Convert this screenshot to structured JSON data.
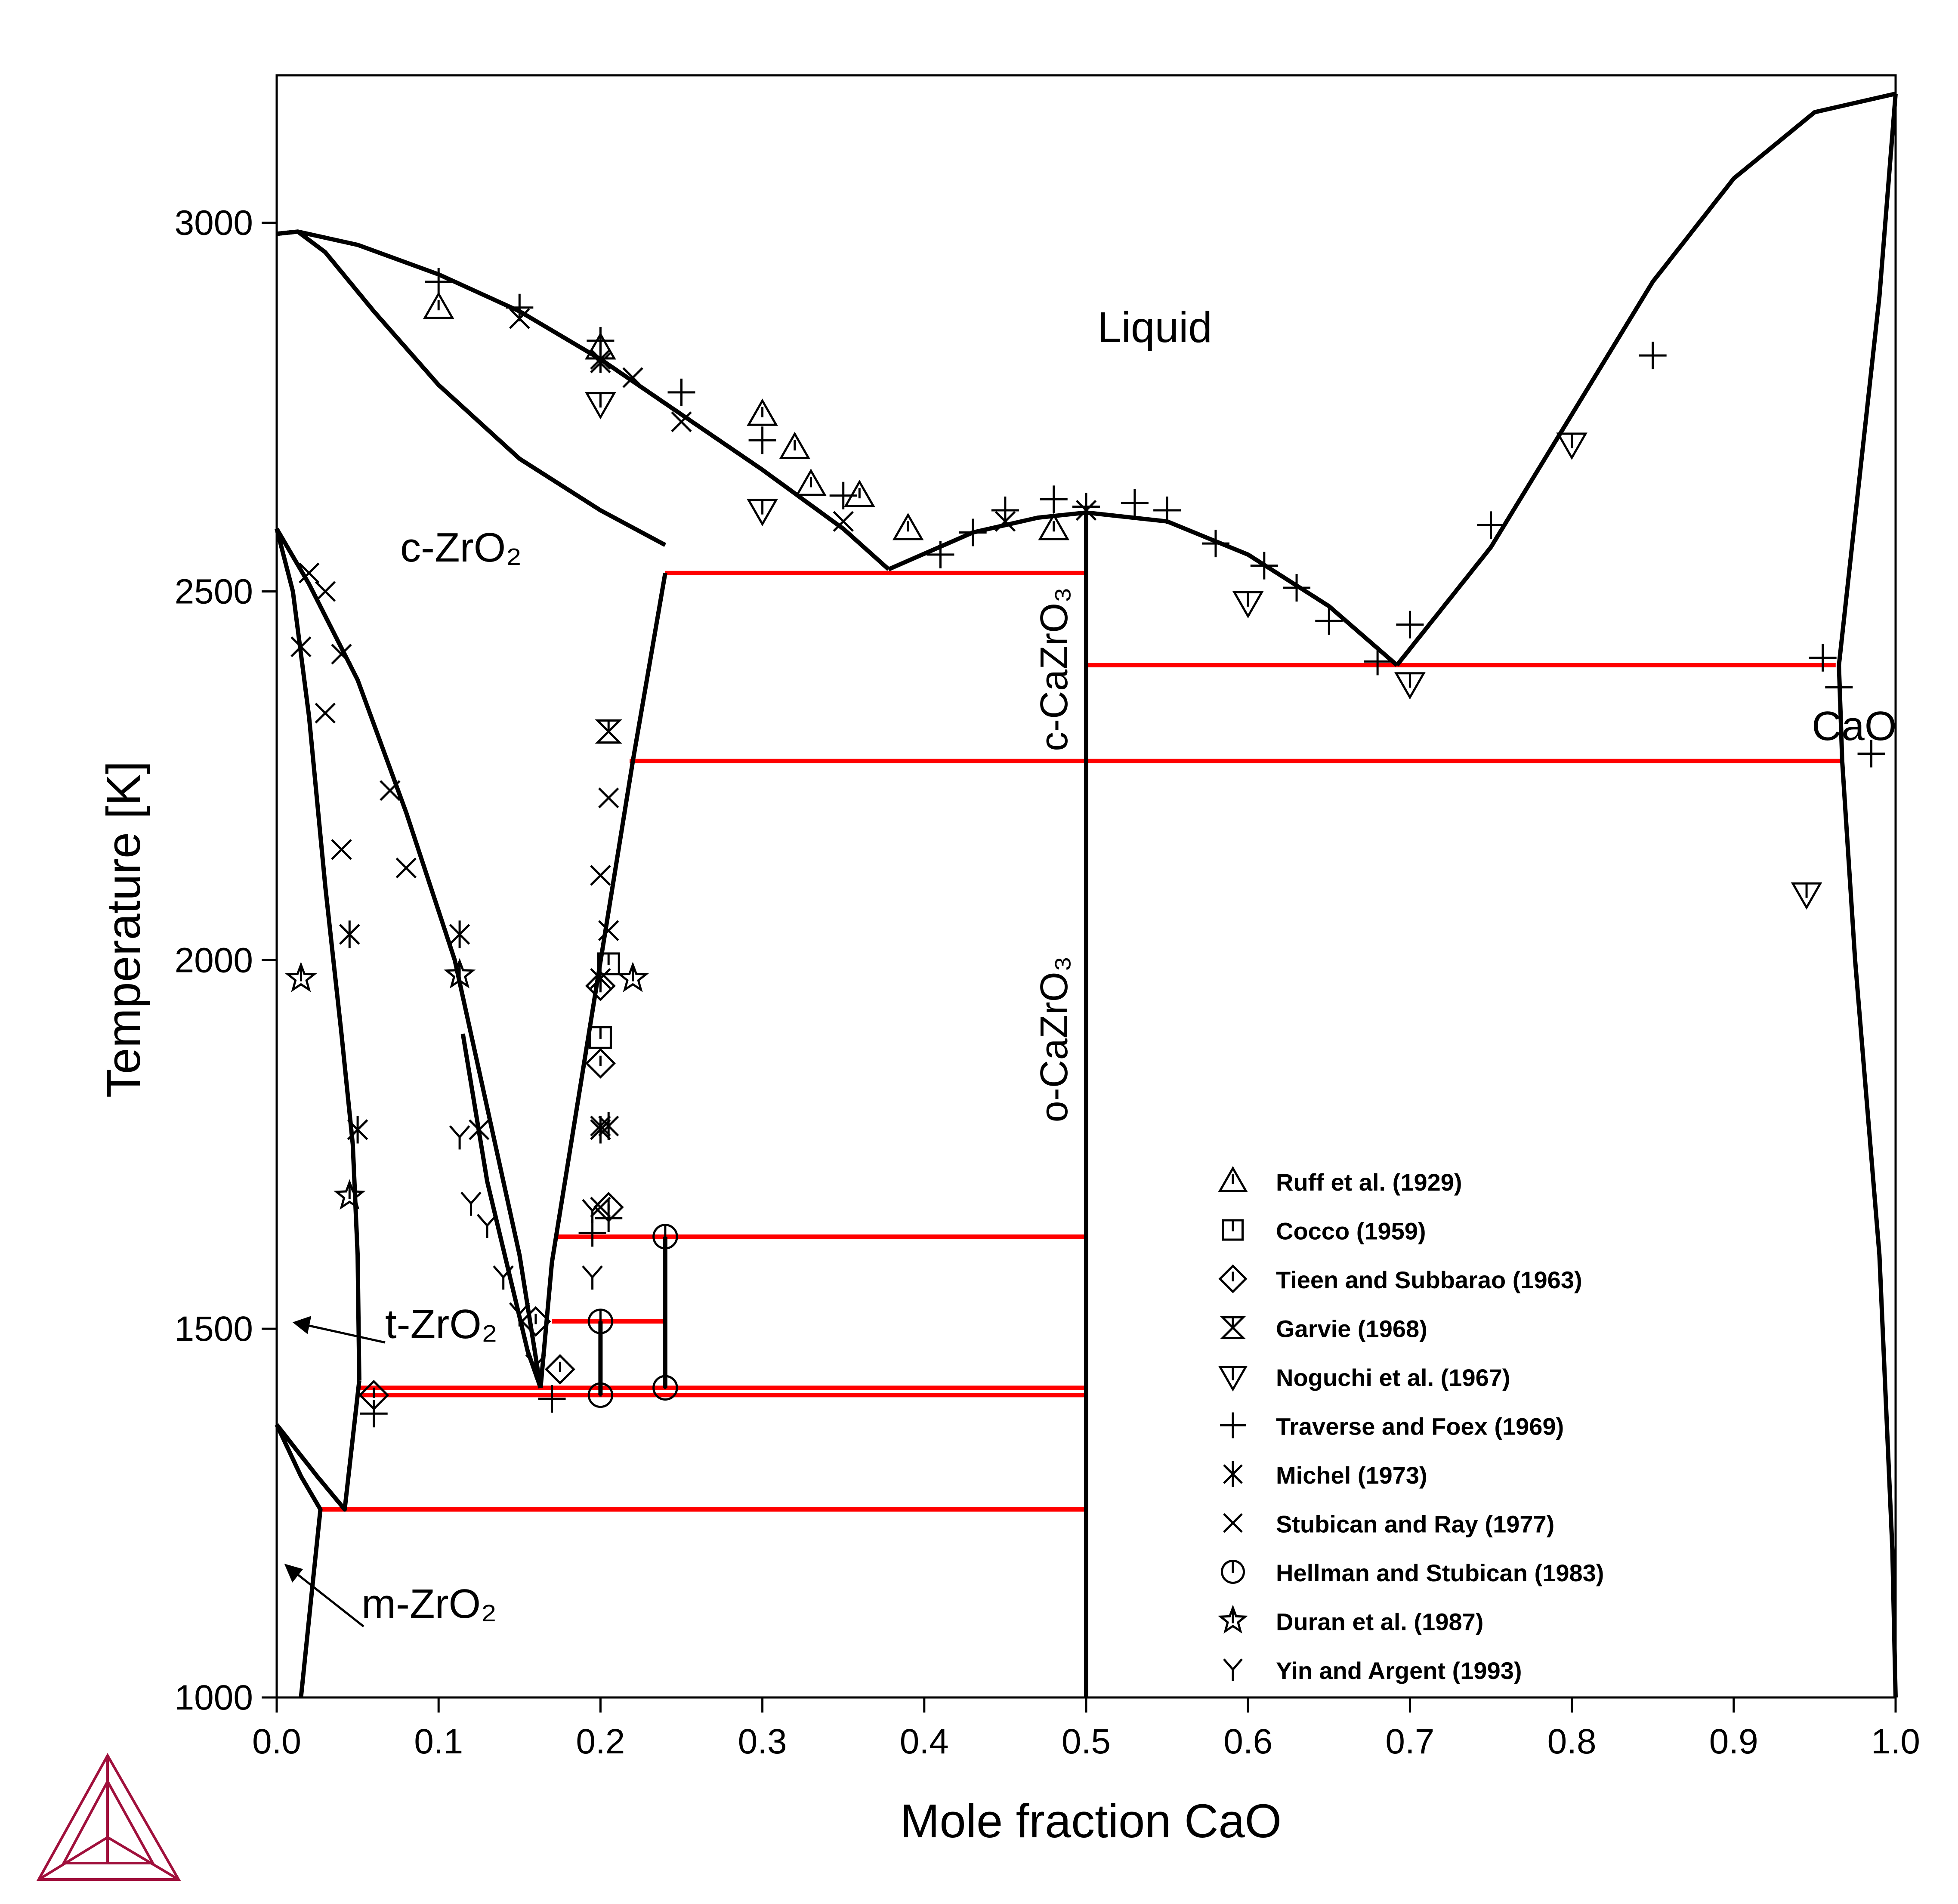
{
  "chart_data": {
    "type": "scatter",
    "subtype": "phase-diagram",
    "xlabel": "Mole fraction CaO",
    "ylabel": "Temperature [K]",
    "xlim": [
      0,
      1
    ],
    "ylim": [
      1000,
      3200
    ],
    "xticks": [
      "0.0",
      "0.1",
      "0.2",
      "0.3",
      "0.4",
      "0.5",
      "0.6",
      "0.7",
      "0.8",
      "0.9",
      "1.0"
    ],
    "yticks": [
      "1000",
      "1500",
      "2000",
      "2500",
      "3000"
    ],
    "grid": false,
    "legend_position": "lower-right",
    "colors": {
      "phase_boundary": "#000000",
      "invariant": "#ff0000",
      "logo": "#a0103c"
    },
    "labels": {
      "liquid": "Liquid",
      "c_zro2": "c-ZrO₂",
      "t_zro2": "t-ZrO₂",
      "m_zro2": "m-ZrO₂",
      "c_cazro3": "c-CaZrO₃",
      "o_cazro3": "o-CaZrO₃",
      "cao": "CaO"
    },
    "phase_boundaries": [
      {
        "name": "liquidus-zro2",
        "points": [
          [
            0,
            2985
          ],
          [
            0.013,
            2988
          ],
          [
            0.05,
            2970
          ],
          [
            0.1,
            2930
          ],
          [
            0.15,
            2880
          ],
          [
            0.2,
            2815
          ],
          [
            0.25,
            2740
          ],
          [
            0.3,
            2665
          ],
          [
            0.35,
            2585
          ],
          [
            0.378,
            2530
          ]
        ]
      },
      {
        "name": "solidus-c-zro2",
        "points": [
          [
            0,
            2985
          ],
          [
            0.013,
            2988
          ],
          [
            0.03,
            2960
          ],
          [
            0.06,
            2880
          ],
          [
            0.1,
            2780
          ],
          [
            0.15,
            2680
          ],
          [
            0.2,
            2610
          ],
          [
            0.24,
            2563
          ],
          [
            0.24,
            2563
          ]
        ]
      },
      {
        "name": "c-zro2-solvus-high",
        "points": [
          [
            0.24,
            2525
          ],
          [
            0.22,
            2270
          ],
          [
            0.17,
            1590
          ],
          [
            0.163,
            1420
          ]
        ]
      },
      {
        "name": "liquidus-cazro3-left",
        "points": [
          [
            0.378,
            2530
          ],
          [
            0.43,
            2580
          ],
          [
            0.47,
            2600
          ],
          [
            0.5,
            2607
          ]
        ]
      },
      {
        "name": "liquidus-cazro3-right",
        "points": [
          [
            0.5,
            2607
          ],
          [
            0.55,
            2595
          ],
          [
            0.6,
            2550
          ],
          [
            0.65,
            2480
          ],
          [
            0.692,
            2400
          ]
        ]
      },
      {
        "name": "liquidus-cao",
        "points": [
          [
            0.692,
            2400
          ],
          [
            0.75,
            2560
          ],
          [
            0.8,
            2740
          ],
          [
            0.85,
            2920
          ],
          [
            0.9,
            3060
          ],
          [
            0.95,
            3150
          ],
          [
            1.0,
            3175
          ]
        ]
      },
      {
        "name": "cao-solidus",
        "points": [
          [
            1.0,
            3175
          ],
          [
            0.99,
            2900
          ],
          [
            0.975,
            2600
          ],
          [
            0.965,
            2400
          ],
          [
            0.967,
            2270
          ],
          [
            0.975,
            2000
          ],
          [
            0.99,
            1600
          ],
          [
            0.998,
            1200
          ],
          [
            1.0,
            1000
          ]
        ]
      },
      {
        "name": "cazro3-line",
        "points": [
          [
            0.5,
            2607
          ],
          [
            0.5,
            1000
          ]
        ]
      },
      {
        "name": "t-zro2-left",
        "points": [
          [
            0,
            2585
          ],
          [
            0.01,
            2500
          ],
          [
            0.02,
            2330
          ],
          [
            0.03,
            2100
          ],
          [
            0.04,
            1900
          ],
          [
            0.047,
            1750
          ],
          [
            0.05,
            1600
          ],
          [
            0.051,
            1430
          ]
        ]
      },
      {
        "name": "t-zro2-right",
        "points": [
          [
            0,
            2585
          ],
          [
            0.02,
            2510
          ],
          [
            0.05,
            2380
          ],
          [
            0.08,
            2200
          ],
          [
            0.11,
            2000
          ],
          [
            0.13,
            1800
          ],
          [
            0.15,
            1600
          ],
          [
            0.163,
            1420
          ]
        ]
      },
      {
        "name": "c-zro2-low",
        "points": [
          [
            0.163,
            1420
          ],
          [
            0.155,
            1470
          ],
          [
            0.13,
            1700
          ],
          [
            0.115,
            1900
          ]
        ]
      },
      {
        "name": "t-m-upper",
        "points": [
          [
            0,
            1370
          ],
          [
            0.025,
            1300
          ],
          [
            0.042,
            1255
          ],
          [
            0.051,
            1430
          ]
        ]
      },
      {
        "name": "m-zro2",
        "points": [
          [
            0,
            1370
          ],
          [
            0.015,
            1300
          ],
          [
            0.027,
            1255
          ],
          [
            0.022,
            1150
          ],
          [
            0.015,
            1000
          ]
        ]
      }
    ],
    "invariant_lines": [
      {
        "y": 2525,
        "x": [
          0.24,
          0.5
        ]
      },
      {
        "y": 2400,
        "x": [
          0.5,
          0.963
        ]
      },
      {
        "y": 2270,
        "x": [
          0.218,
          0.967
        ]
      },
      {
        "y": 1625,
        "x": [
          0.172,
          0.5
        ]
      },
      {
        "y": 1510,
        "x": [
          0.17,
          0.24
        ]
      },
      {
        "y": 1420,
        "x": [
          0.05,
          0.5
        ]
      },
      {
        "y": 1410,
        "x": [
          0.05,
          0.5
        ]
      },
      {
        "y": 1255,
        "x": [
          0.027,
          0.5
        ]
      }
    ],
    "tie_lines": [
      {
        "x": 0.2,
        "y": [
          1410,
          1510
        ]
      },
      {
        "x": 0.24,
        "y": [
          1420,
          1625
        ]
      }
    ],
    "series": [
      {
        "name": "Ruff et al. (1929)",
        "marker": "triangle-up",
        "points": [
          [
            0.1,
            2885
          ],
          [
            0.2,
            2830
          ],
          [
            0.3,
            2740
          ],
          [
            0.32,
            2695
          ],
          [
            0.33,
            2645
          ],
          [
            0.36,
            2630
          ],
          [
            0.39,
            2585
          ],
          [
            0.48,
            2585
          ]
        ]
      },
      {
        "name": "Cocco (1959)",
        "marker": "square",
        "points": [
          [
            0.205,
            1995
          ],
          [
            0.2,
            1895
          ]
        ]
      },
      {
        "name": "Tieen and Subbarao (1963)",
        "marker": "diamond",
        "points": [
          [
            0.2,
            1965
          ],
          [
            0.2,
            1860
          ],
          [
            0.205,
            1665
          ],
          [
            0.06,
            1410
          ],
          [
            0.175,
            1445
          ],
          [
            0.16,
            1510
          ]
        ]
      },
      {
        "name": "Garvie (1968)",
        "marker": "hourglass",
        "points": [
          [
            0.205,
            2310
          ]
        ]
      },
      {
        "name": "Noguchi et al. (1967)",
        "marker": "triangle-down",
        "points": [
          [
            0.2,
            2755
          ],
          [
            0.3,
            2610
          ],
          [
            0.6,
            2485
          ],
          [
            0.7,
            2375
          ],
          [
            0.8,
            2700
          ],
          [
            0.945,
            2090
          ]
        ]
      },
      {
        "name": "Traverse and Foex (1969)",
        "marker": "plus",
        "points": [
          [
            0.1,
            2920
          ],
          [
            0.15,
            2885
          ],
          [
            0.2,
            2840
          ],
          [
            0.25,
            2770
          ],
          [
            0.3,
            2705
          ],
          [
            0.35,
            2630
          ],
          [
            0.41,
            2550
          ],
          [
            0.43,
            2580
          ],
          [
            0.45,
            2610
          ],
          [
            0.48,
            2625
          ],
          [
            0.5,
            2615
          ],
          [
            0.53,
            2620
          ],
          [
            0.55,
            2610
          ],
          [
            0.58,
            2565
          ],
          [
            0.61,
            2535
          ],
          [
            0.63,
            2505
          ],
          [
            0.65,
            2460
          ],
          [
            0.68,
            2405
          ],
          [
            0.7,
            2455
          ],
          [
            0.75,
            2590
          ],
          [
            0.85,
            2820
          ],
          [
            0.955,
            2410
          ],
          [
            0.965,
            2370
          ],
          [
            0.985,
            2280
          ],
          [
            0.06,
            1385
          ],
          [
            0.17,
            1405
          ],
          [
            0.195,
            1630
          ],
          [
            0.205,
            1650
          ]
        ]
      },
      {
        "name": "Michel (1973)",
        "marker": "asterisk",
        "points": [
          [
            0.2,
            2815
          ],
          [
            0.2,
            1975
          ],
          [
            0.2,
            1770
          ],
          [
            0.205,
            1775
          ],
          [
            0.113,
            2035
          ],
          [
            0.045,
            2035
          ],
          [
            0.05,
            1770
          ]
        ]
      },
      {
        "name": "Stubican and Ray (1977)",
        "marker": "cross",
        "points": [
          [
            0.15,
            2870
          ],
          [
            0.2,
            2810
          ],
          [
            0.22,
            2790
          ],
          [
            0.25,
            2730
          ],
          [
            0.35,
            2595
          ],
          [
            0.45,
            2595
          ],
          [
            0.5,
            2610
          ],
          [
            0.02,
            2525
          ],
          [
            0.03,
            2500
          ],
          [
            0.015,
            2425
          ],
          [
            0.04,
            2415
          ],
          [
            0.03,
            2335
          ],
          [
            0.04,
            2150
          ],
          [
            0.07,
            2230
          ],
          [
            0.08,
            2125
          ],
          [
            0.045,
            2035
          ],
          [
            0.05,
            1770
          ],
          [
            0.125,
            1770
          ],
          [
            0.205,
            2220
          ],
          [
            0.2,
            2115
          ],
          [
            0.205,
            2040
          ],
          [
            0.2,
            1775
          ],
          [
            0.2,
            1665
          ]
        ]
      },
      {
        "name": "Hellman and Stubican (1983)",
        "marker": "circle",
        "points": [
          [
            0.24,
            1625
          ],
          [
            0.2,
            1510
          ],
          [
            0.2,
            1410
          ],
          [
            0.24,
            1420
          ]
        ]
      },
      {
        "name": "Duran et al. (1987)",
        "marker": "star",
        "points": [
          [
            0.015,
            1975
          ],
          [
            0.113,
            1980
          ],
          [
            0.22,
            1975
          ],
          [
            0.045,
            1680
          ]
        ]
      },
      {
        "name": "Yin and Argent (1993)",
        "marker": "y-shape",
        "points": [
          [
            0.113,
            1760
          ],
          [
            0.12,
            1670
          ],
          [
            0.13,
            1640
          ],
          [
            0.14,
            1570
          ],
          [
            0.15,
            1520
          ],
          [
            0.16,
            1450
          ],
          [
            0.195,
            1660
          ],
          [
            0.195,
            1570
          ]
        ]
      }
    ]
  }
}
